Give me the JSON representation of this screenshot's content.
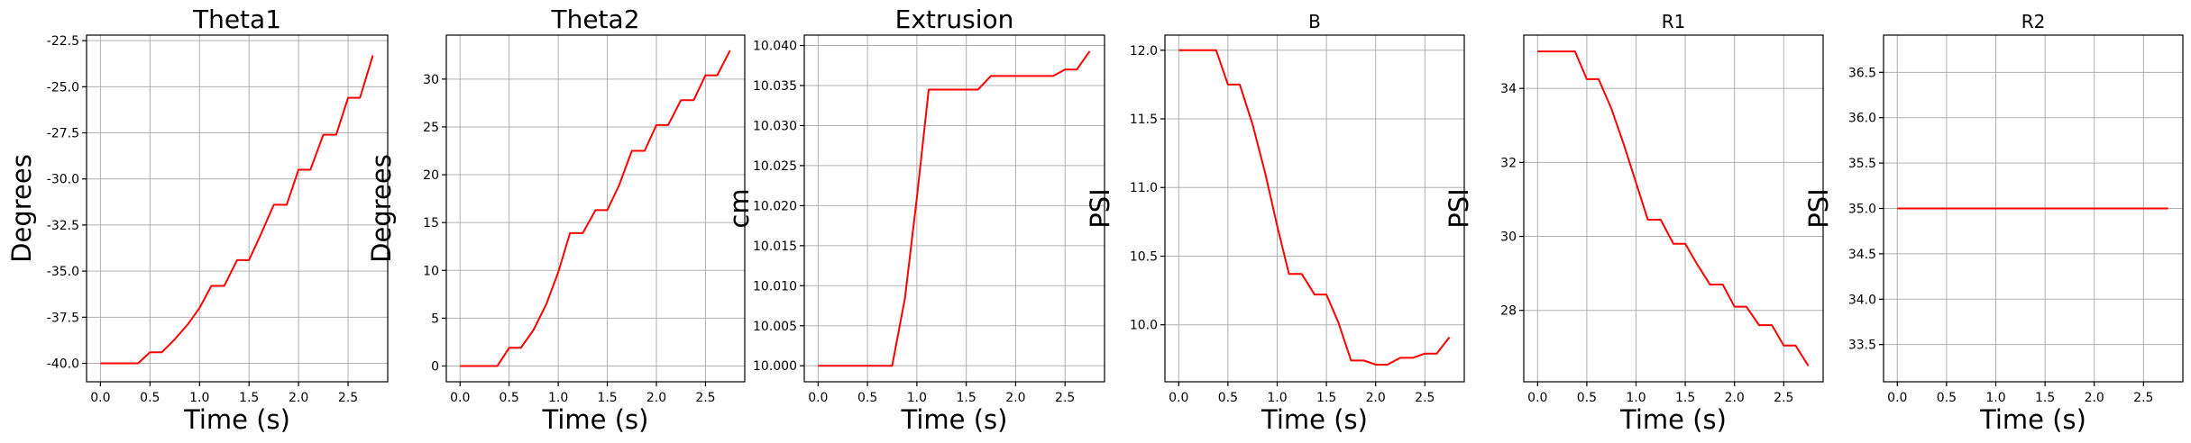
{
  "chart_data": [
    {
      "type": "line",
      "title": "Theta1",
      "xlabel": "Time (s)",
      "ylabel": "Degrees",
      "xlim": [
        -0.14,
        2.9
      ],
      "ylim": [
        -41.0,
        -22.2
      ],
      "xticks": [
        "0.0",
        "0.5",
        "1.0",
        "1.5",
        "2.0",
        "2.5"
      ],
      "yticks": [
        "-40.0",
        "-37.5",
        "-35.0",
        "-32.5",
        "-30.0",
        "-27.5",
        "-25.0",
        "-22.5"
      ],
      "grid": true,
      "series": [
        {
          "color": "#ff0000",
          "x": [
            0.0,
            0.12,
            0.25,
            0.38,
            0.5,
            0.62,
            0.75,
            0.88,
            1.0,
            1.12,
            1.25,
            1.38,
            1.5,
            1.62,
            1.75,
            1.88,
            2.0,
            2.12,
            2.25,
            2.38,
            2.5,
            2.62,
            2.75
          ],
          "y": [
            -40.0,
            -40.0,
            -40.0,
            -40.0,
            -39.4,
            -39.4,
            -38.7,
            -37.9,
            -37.0,
            -35.8,
            -35.8,
            -34.4,
            -34.4,
            -33.0,
            -31.4,
            -31.4,
            -29.5,
            -29.5,
            -27.6,
            -27.6,
            -25.6,
            -25.6,
            -23.3
          ]
        }
      ]
    },
    {
      "type": "line",
      "title": "Theta2",
      "xlabel": "Time (s)",
      "ylabel": "Degrees",
      "xlim": [
        -0.14,
        2.9
      ],
      "ylim": [
        -1.65,
        34.6
      ],
      "xticks": [
        "0.0",
        "0.5",
        "1.0",
        "1.5",
        "2.0",
        "2.5"
      ],
      "yticks": [
        "0",
        "5",
        "10",
        "15",
        "20",
        "25",
        "30"
      ],
      "grid": true,
      "series": [
        {
          "color": "#ff0000",
          "x": [
            0.0,
            0.12,
            0.25,
            0.38,
            0.5,
            0.62,
            0.75,
            0.88,
            1.0,
            1.12,
            1.25,
            1.38,
            1.5,
            1.62,
            1.75,
            1.88,
            2.0,
            2.12,
            2.25,
            2.38,
            2.5,
            2.62,
            2.75
          ],
          "y": [
            0.0,
            0.0,
            0.0,
            0.0,
            1.9,
            1.9,
            3.8,
            6.5,
            9.8,
            13.9,
            13.9,
            16.3,
            16.3,
            18.9,
            22.5,
            22.5,
            25.2,
            25.2,
            27.8,
            27.8,
            30.4,
            30.4,
            33.0
          ]
        }
      ]
    },
    {
      "type": "line",
      "title": "Extrusion",
      "xlabel": "Time (s)",
      "ylabel": "cm",
      "xlim": [
        -0.14,
        2.9
      ],
      "ylim": [
        9.998,
        10.0413
      ],
      "xticks": [
        "0.0",
        "0.5",
        "1.0",
        "1.5",
        "2.0",
        "2.5"
      ],
      "yticks": [
        "10.000",
        "10.005",
        "10.010",
        "10.015",
        "10.020",
        "10.025",
        "10.030",
        "10.035",
        "10.040"
      ],
      "grid": true,
      "series": [
        {
          "color": "#ff0000",
          "x": [
            0.0,
            0.12,
            0.25,
            0.38,
            0.5,
            0.62,
            0.75,
            0.88,
            1.0,
            1.12,
            1.25,
            1.38,
            1.5,
            1.62,
            1.75,
            1.88,
            2.0,
            2.12,
            2.25,
            2.38,
            2.5,
            2.62,
            2.75
          ],
          "y": [
            10.0,
            10.0,
            10.0,
            10.0,
            10.0,
            10.0,
            10.0,
            10.0085,
            10.021,
            10.0345,
            10.0345,
            10.0345,
            10.0345,
            10.0345,
            10.0362,
            10.0362,
            10.0362,
            10.0362,
            10.0362,
            10.0362,
            10.037,
            10.037,
            10.0393
          ]
        }
      ]
    },
    {
      "type": "line",
      "title": "B",
      "xlabel": "Time (s)",
      "ylabel": "PSI",
      "xlim": [
        -0.14,
        2.9
      ],
      "ylim": [
        9.585,
        12.11
      ],
      "xticks": [
        "0.0",
        "0.5",
        "1.0",
        "1.5",
        "2.0",
        "2.5"
      ],
      "yticks": [
        "10.0",
        "10.5",
        "11.0",
        "11.5",
        "12.0"
      ],
      "grid": true,
      "series": [
        {
          "color": "#ff0000",
          "x": [
            0.0,
            0.12,
            0.25,
            0.38,
            0.5,
            0.62,
            0.75,
            0.88,
            1.0,
            1.12,
            1.25,
            1.38,
            1.5,
            1.62,
            1.75,
            1.88,
            2.0,
            2.12,
            2.25,
            2.38,
            2.5,
            2.62,
            2.75
          ],
          "y": [
            12.0,
            12.0,
            12.0,
            12.0,
            11.75,
            11.75,
            11.46,
            11.1,
            10.72,
            10.37,
            10.37,
            10.22,
            10.22,
            10.02,
            9.74,
            9.74,
            9.71,
            9.71,
            9.76,
            9.76,
            9.79,
            9.79,
            9.91
          ]
        }
      ]
    },
    {
      "type": "line",
      "title": "R1",
      "xlabel": "Time (s)",
      "ylabel": "PSI",
      "xlim": [
        -0.14,
        2.9
      ],
      "ylim": [
        26.07,
        35.44
      ],
      "xticks": [
        "0.0",
        "0.5",
        "1.0",
        "1.5",
        "2.0",
        "2.5"
      ],
      "yticks": [
        "28",
        "30",
        "32",
        "34"
      ],
      "grid": true,
      "series": [
        {
          "color": "#ff0000",
          "x": [
            0.0,
            0.12,
            0.25,
            0.38,
            0.5,
            0.62,
            0.75,
            0.88,
            1.0,
            1.12,
            1.25,
            1.38,
            1.5,
            1.62,
            1.75,
            1.88,
            2.0,
            2.12,
            2.25,
            2.38,
            2.5,
            2.62,
            2.75
          ],
          "y": [
            35.0,
            35.0,
            35.0,
            35.0,
            34.25,
            34.25,
            33.45,
            32.45,
            31.45,
            30.45,
            30.45,
            29.8,
            29.8,
            29.25,
            28.7,
            28.7,
            28.1,
            28.1,
            27.6,
            27.6,
            27.05,
            27.05,
            26.5
          ]
        }
      ]
    },
    {
      "type": "line",
      "title": "R2",
      "xlabel": "Time (s)",
      "ylabel": "PSI",
      "xlim": [
        -0.14,
        2.9
      ],
      "ylim": [
        33.09,
        36.91
      ],
      "xticks": [
        "0.0",
        "0.5",
        "1.0",
        "1.5",
        "2.0",
        "2.5"
      ],
      "yticks": [
        "33.5",
        "34.0",
        "34.5",
        "35.0",
        "35.5",
        "36.0",
        "36.5"
      ],
      "grid": true,
      "series": [
        {
          "color": "#ff0000",
          "x": [
            0.0,
            2.75
          ],
          "y": [
            35.0,
            35.0
          ]
        }
      ]
    }
  ]
}
